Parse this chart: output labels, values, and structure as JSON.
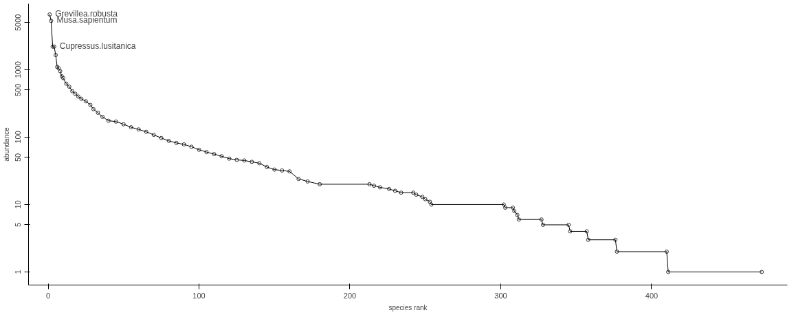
{
  "chart_data": {
    "type": "line",
    "xlabel": "species rank",
    "ylabel": "abundance",
    "log": "y",
    "marker": "circle",
    "line_style": "solid",
    "grid": false,
    "xlim": [
      -13,
      490
    ],
    "xticks": [
      0,
      100,
      200,
      300,
      400
    ],
    "ylim": [
      0.64,
      9500
    ],
    "yticks": [
      1,
      5,
      10,
      50,
      100,
      500,
      1000,
      5000
    ],
    "annotations": [
      {
        "text": "Grevillea.robusta",
        "x": 1,
        "y": 6600
      },
      {
        "text": "Musa.sapientum",
        "x": 2,
        "y": 5300
      },
      {
        "text": "Cupressus.lusitanica",
        "x": 4,
        "y": 2200
      }
    ],
    "series": [
      {
        "color": "#000000",
        "x": [
          1,
          2,
          3,
          4,
          5,
          6,
          7,
          8,
          9,
          10,
          12,
          14,
          16,
          18,
          20,
          22,
          25,
          28,
          30,
          33,
          36,
          40,
          45,
          50,
          55,
          60,
          65,
          70,
          75,
          80,
          85,
          90,
          95,
          100,
          105,
          110,
          115,
          120,
          125,
          130,
          135,
          140,
          145,
          150,
          155,
          160,
          166,
          172,
          180,
          213,
          216,
          220,
          226,
          230,
          234,
          242,
          244,
          248,
          250,
          253,
          254,
          302,
          303,
          308,
          309,
          311,
          312,
          327,
          328,
          345,
          346,
          357,
          358,
          376,
          377,
          410,
          411,
          473
        ],
        "values": [
          6600,
          5300,
          2200,
          2200,
          1650,
          1100,
          1050,
          950,
          800,
          750,
          620,
          560,
          480,
          440,
          400,
          370,
          340,
          300,
          260,
          230,
          200,
          175,
          170,
          155,
          140,
          130,
          120,
          108,
          97,
          88,
          82,
          78,
          72,
          65,
          60,
          56,
          52,
          48,
          46,
          45,
          43,
          41,
          36,
          33,
          32,
          31,
          24,
          22,
          20,
          20,
          19,
          18,
          17,
          16,
          15,
          15,
          14,
          13,
          12,
          11,
          10,
          10,
          9,
          9,
          8,
          7,
          6,
          6,
          5,
          5,
          4,
          4,
          3,
          3,
          2,
          2,
          1,
          1
        ]
      }
    ]
  }
}
